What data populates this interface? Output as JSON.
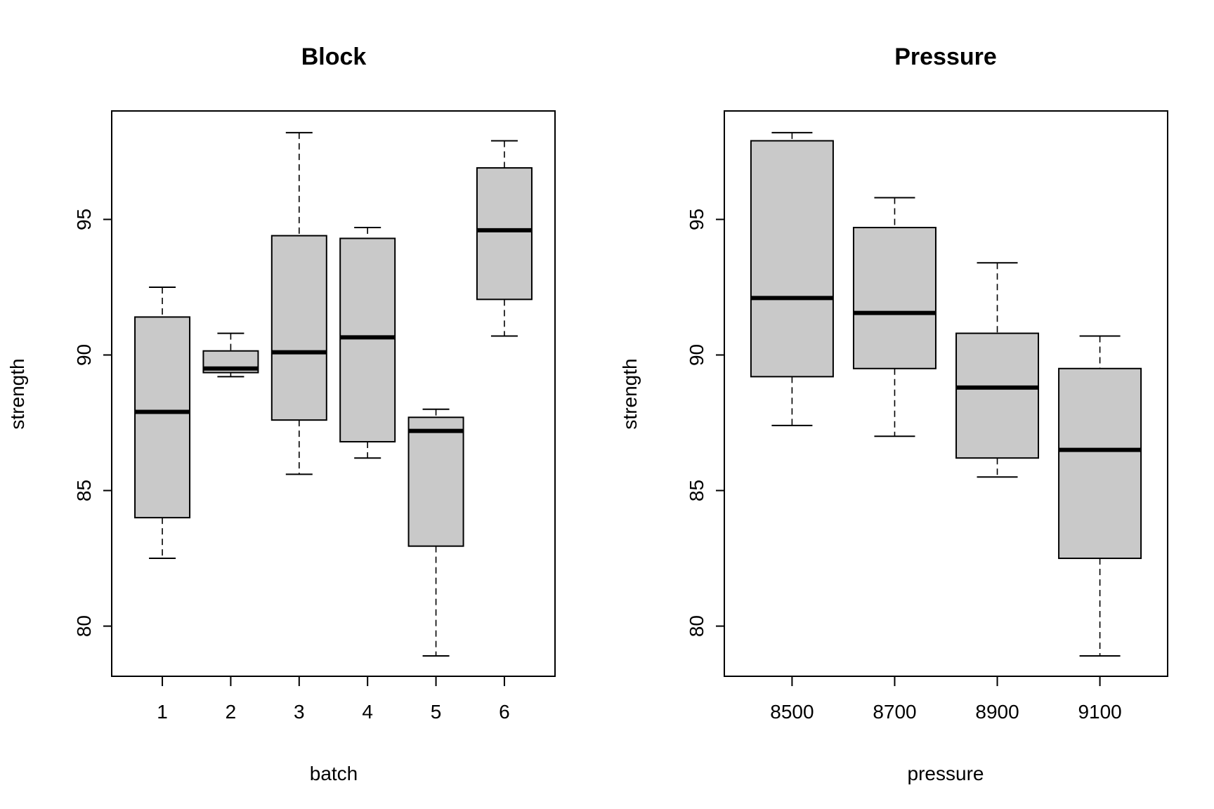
{
  "chart_data": [
    {
      "type": "boxplot",
      "title": "Block",
      "xlabel": "batch",
      "ylabel": "strength",
      "ylim": [
        78.15,
        99.0
      ],
      "yticks": [
        80,
        85,
        90,
        95
      ],
      "ytick_labels": [
        "80",
        "85",
        "90",
        "95"
      ],
      "categories": [
        "1",
        "2",
        "3",
        "4",
        "5",
        "6"
      ],
      "boxes": [
        {
          "whisker_low": 82.5,
          "q1": 84.0,
          "median": 87.9,
          "q3": 91.4,
          "whisker_high": 92.5
        },
        {
          "whisker_low": 89.2,
          "q1": 89.35,
          "median": 89.5,
          "q3": 90.15,
          "whisker_high": 90.8
        },
        {
          "whisker_low": 85.6,
          "q1": 87.6,
          "median": 90.1,
          "q3": 94.4,
          "whisker_high": 98.2
        },
        {
          "whisker_low": 86.2,
          "q1": 86.8,
          "median": 90.65,
          "q3": 94.3,
          "whisker_high": 94.7
        },
        {
          "whisker_low": 78.9,
          "q1": 82.95,
          "median": 87.2,
          "q3": 87.7,
          "whisker_high": 88.0
        },
        {
          "whisker_low": 90.7,
          "q1": 92.05,
          "median": 94.6,
          "q3": 96.9,
          "whisker_high": 97.9
        }
      ],
      "grid": false,
      "box_fill": "#c9c9c9"
    },
    {
      "type": "boxplot",
      "title": "Pressure",
      "xlabel": "pressure",
      "ylabel": "strength",
      "ylim": [
        78.15,
        99.0
      ],
      "yticks": [
        80,
        85,
        90,
        95
      ],
      "ytick_labels": [
        "80",
        "85",
        "90",
        "95"
      ],
      "categories": [
        "8500",
        "8700",
        "8900",
        "9100"
      ],
      "boxes": [
        {
          "whisker_low": 87.4,
          "q1": 89.2,
          "median": 92.1,
          "q3": 97.9,
          "whisker_high": 98.2
        },
        {
          "whisker_low": 87.0,
          "q1": 89.5,
          "median": 91.55,
          "q3": 94.7,
          "whisker_high": 95.8
        },
        {
          "whisker_low": 85.5,
          "q1": 86.2,
          "median": 88.8,
          "q3": 90.8,
          "whisker_high": 93.4
        },
        {
          "whisker_low": 78.9,
          "q1": 82.5,
          "median": 86.5,
          "q3": 89.5,
          "whisker_high": 90.7
        }
      ],
      "grid": false,
      "box_fill": "#c9c9c9"
    }
  ]
}
